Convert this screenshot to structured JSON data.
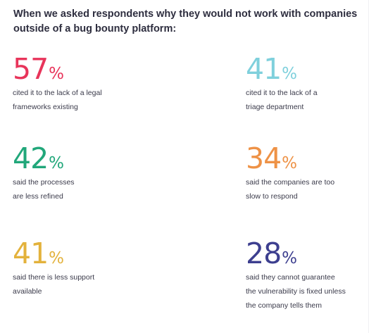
{
  "heading": "When we asked respondents why they would not work with companies outside of a bug bounty platform:",
  "stats": [
    {
      "value": "57",
      "unit": "%",
      "color": "#e8345a",
      "lines": [
        "cited it to the lack of a legal",
        "frameworks existing"
      ]
    },
    {
      "value": "41",
      "unit": "%",
      "color": "#7fd0dc",
      "lines": [
        "cited it to the lack of a",
        "triage department"
      ]
    },
    {
      "value": "42",
      "unit": "%",
      "color": "#21a77a",
      "lines": [
        "said the processes",
        "are less refined"
      ]
    },
    {
      "value": "34",
      "unit": "%",
      "color": "#ee9246",
      "lines": [
        "said the companies are too",
        "slow to respond"
      ]
    },
    {
      "value": "41",
      "unit": "%",
      "color": "#e3b23c",
      "lines": [
        "said there is less support",
        "available"
      ]
    },
    {
      "value": "28",
      "unit": "%",
      "color": "#3d3f8f",
      "lines": [
        "said they cannot guarantee",
        "the vulnerability is fixed unless",
        "the company tells them"
      ]
    }
  ]
}
